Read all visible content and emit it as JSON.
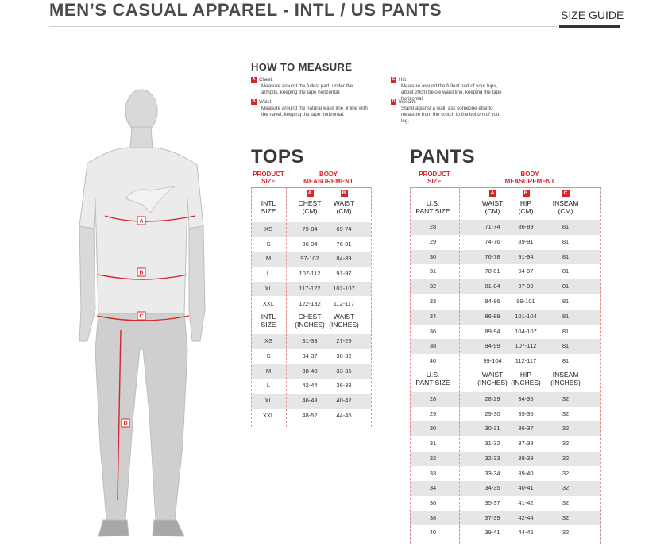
{
  "header": {
    "title": "MEN’S CASUAL APPAREL - INTL / US PANTS",
    "link": "SIZE GUIDE"
  },
  "figure": {
    "markers": [
      "A",
      "B",
      "C",
      "D"
    ]
  },
  "how_to_measure": {
    "title": "HOW TO MEASURE",
    "items": [
      {
        "letter": "A",
        "label": "Chest:",
        "text": "Measure around the fullest part, under the armpits, keeping the tape horizontal."
      },
      {
        "letter": "B",
        "label": "Waist:",
        "text": "Measure around the natural waist line, inline with the navel, keeping the tape horizontal."
      },
      {
        "letter": "C",
        "label": "Hip:",
        "text": "Measure around the fullest part of your hips, about 20cm below waist line, keeping the tape horizontal."
      },
      {
        "letter": "D",
        "label": "Inseam:",
        "text": "Stand against a wall, ask someone else to measure from the crotch to the bottom of your leg."
      }
    ]
  },
  "tops": {
    "title": "TOPS",
    "product_size": "PRODUCT\nSIZE",
    "body_measurement": "BODY\nMEASUREMENT",
    "letters": [
      "A",
      "B"
    ],
    "sections": [
      {
        "headers": [
          "INTL\nSIZE",
          "CHEST\n(CM)",
          "WAIST\n(CM)"
        ],
        "rows": [
          [
            "XS",
            "79-84",
            "69-74"
          ],
          [
            "S",
            "86-94",
            "76-81"
          ],
          [
            "M",
            "97-102",
            "84-89"
          ],
          [
            "L",
            "107-112",
            "91-97"
          ],
          [
            "XL",
            "117-122",
            "102-107"
          ],
          [
            "XXL",
            "122-132",
            "112-117"
          ]
        ]
      },
      {
        "headers": [
          "INTL\nSIZE",
          "CHEST\n(INCHES)",
          "WAIST\n(INCHES)"
        ],
        "rows": [
          [
            "XS",
            "31-33",
            "27-29"
          ],
          [
            "S",
            "34-37",
            "30-32"
          ],
          [
            "M",
            "38-40",
            "33-35"
          ],
          [
            "L",
            "42-44",
            "36-38"
          ],
          [
            "XL",
            "46-48",
            "40-42"
          ],
          [
            "XXL",
            "48-52",
            "44-46"
          ]
        ]
      }
    ]
  },
  "pants": {
    "title": "PANTS",
    "product_size": "PRODUCT\nSIZE",
    "body_measurement": "BODY\nMEASUREMENT",
    "letters": [
      "A",
      "B",
      "C"
    ],
    "sections": [
      {
        "headers": [
          "U.S.\nPANT SIZE",
          "WAIST\n(CM)",
          "HIP\n(CM)",
          "INSEAM\n(CM)"
        ],
        "rows": [
          [
            "28",
            "71-74",
            "86-89",
            "81"
          ],
          [
            "29",
            "74-76",
            "89-91",
            "81"
          ],
          [
            "30",
            "76-78",
            "91-94",
            "81"
          ],
          [
            "31",
            "78-81",
            "94-97",
            "81"
          ],
          [
            "32",
            "81-84",
            "97-99",
            "81"
          ],
          [
            "33",
            "84-86",
            "99-101",
            "81"
          ],
          [
            "34",
            "86-89",
            "101-104",
            "81"
          ],
          [
            "36",
            "89-94",
            "104-107",
            "81"
          ],
          [
            "38",
            "94-99",
            "107-112",
            "81"
          ],
          [
            "40",
            "99-104",
            "112-117",
            "81"
          ]
        ]
      },
      {
        "headers": [
          "U.S.\nPANT SIZE",
          "WAIST\n(INCHES)",
          "HIP\n(INCHES)",
          "INSEAM\n(INCHES)"
        ],
        "rows": [
          [
            "28",
            "28-29",
            "34-35",
            "32"
          ],
          [
            "29",
            "29-30",
            "35-36",
            "32"
          ],
          [
            "30",
            "30-31",
            "36-37",
            "32"
          ],
          [
            "31",
            "31-32",
            "37-38",
            "32"
          ],
          [
            "32",
            "32-33",
            "38-39",
            "32"
          ],
          [
            "33",
            "33-34",
            "39-40",
            "32"
          ],
          [
            "34",
            "34-35",
            "40-41",
            "32"
          ],
          [
            "36",
            "35-37",
            "41-42",
            "32"
          ],
          [
            "38",
            "37-39",
            "42-44",
            "32"
          ],
          [
            "40",
            "39-41",
            "44-46",
            "32"
          ]
        ]
      }
    ]
  }
}
